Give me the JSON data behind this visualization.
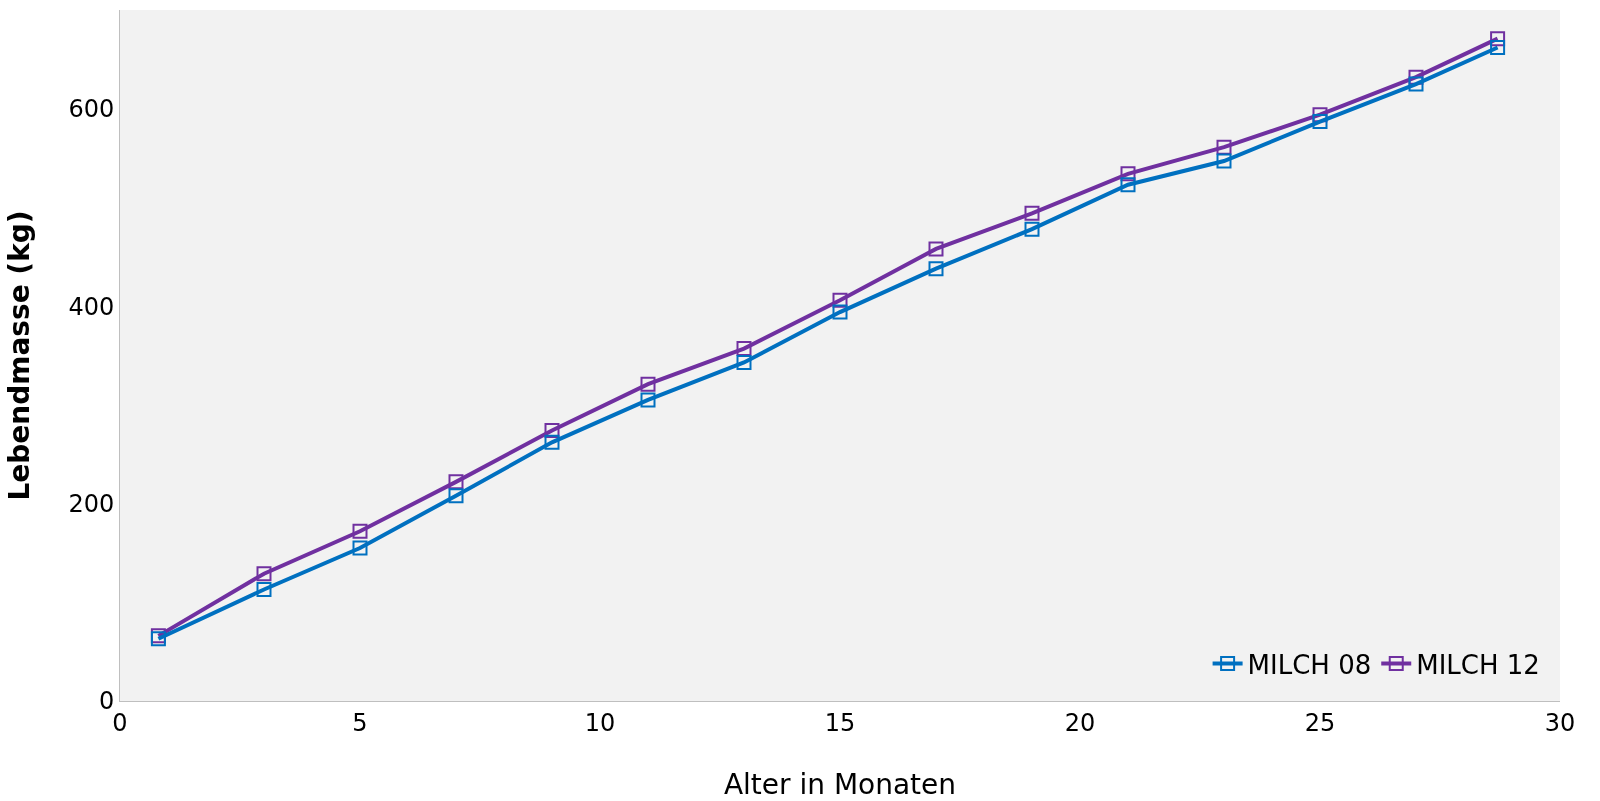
{
  "chart_data": {
    "type": "line",
    "xlabel": "Alter in Monaten",
    "ylabel": "Lebendmasse (kg)",
    "x": [
      0.8,
      3,
      5,
      7,
      9,
      11,
      13,
      15,
      17,
      19,
      21,
      23,
      25,
      27,
      28.7
    ],
    "series": [
      {
        "name": "MILCH 08",
        "color": "#0070c0",
        "values": [
          63,
          113,
          155,
          208,
          262,
          305,
          343,
          394,
          438,
          478,
          523,
          547,
          587,
          625,
          662
        ]
      },
      {
        "name": "MILCH 12",
        "color": "#7030a0",
        "values": [
          66,
          129,
          172,
          222,
          274,
          321,
          357,
          406,
          458,
          494,
          534,
          561,
          594,
          632,
          671
        ]
      }
    ],
    "xlim": [
      0,
      30
    ],
    "xticks": [
      0,
      5,
      10,
      15,
      20,
      25,
      30
    ],
    "ylim": [
      0,
      700
    ],
    "yticks": [
      0,
      200,
      400,
      600
    ],
    "grid": false,
    "legend": "bottom right",
    "marker": "square",
    "line_style": "solid"
  }
}
